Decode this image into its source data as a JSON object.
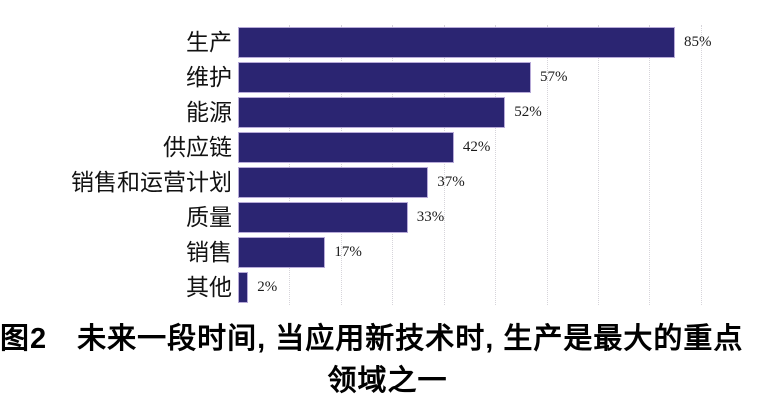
{
  "chart_data": {
    "type": "bar",
    "orientation": "horizontal",
    "title": "",
    "xlabel": "",
    "ylabel": "",
    "categories": [
      "生产",
      "维护",
      "能源",
      "供应链",
      "销售和运营计划",
      "质量",
      "销售",
      "其他"
    ],
    "values": [
      85,
      57,
      52,
      42,
      37,
      33,
      17,
      2
    ],
    "value_labels": [
      "85%",
      "57%",
      "52%",
      "42%",
      "37%",
      "33%",
      "17%",
      "2%"
    ],
    "xlim": [
      0,
      100
    ],
    "gridlines_percent": [
      10,
      20,
      30,
      40,
      50,
      60,
      70,
      80,
      90
    ],
    "grid": "vertical-dotted",
    "axis_lines": "none",
    "bar_color": "#2b2572",
    "bar_border_color": "#b7aad8",
    "gridline_color": "#d6d4da"
  },
  "caption": {
    "prefix": "图2",
    "line1": "未来一段时间, 当应用新技术时, 生产是最大的重点",
    "line2": "领域之一"
  }
}
